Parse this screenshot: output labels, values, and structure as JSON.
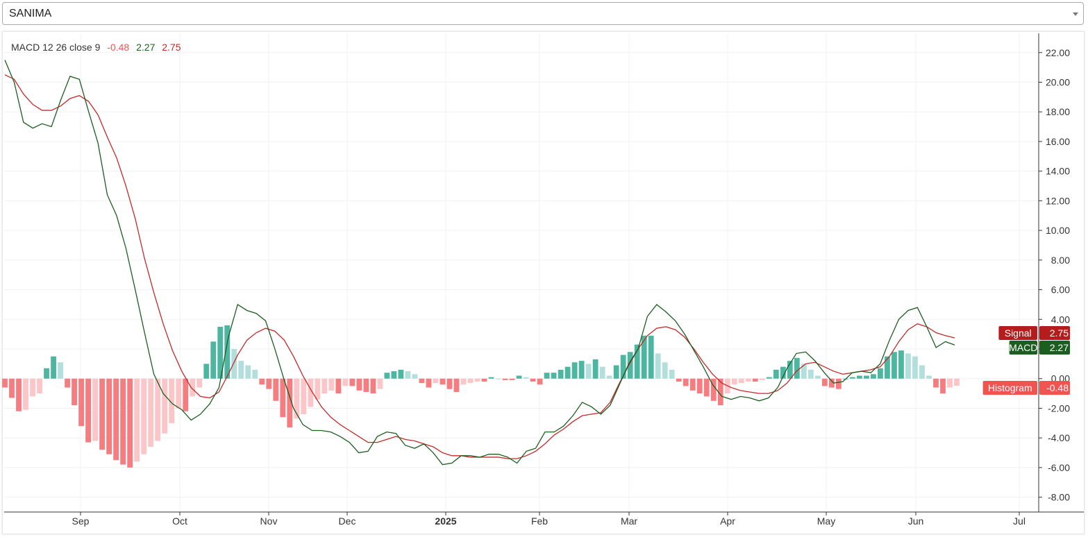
{
  "symbol_select": {
    "value": "SANIMA"
  },
  "legend": {
    "label": "MACD 12 26 close 9",
    "histogram": "-0.48",
    "macd": "2.27",
    "signal": "2.75"
  },
  "colors": {
    "macd_line": "#1b5e20",
    "signal_line": "#c62828",
    "hist_pos_strong": "#4db6a0",
    "hist_pos_weak": "#b2dfdb",
    "hist_neg_strong": "#f77c80",
    "hist_neg_weak": "#fcc5c8",
    "signal_badge": "#b71c1c",
    "macd_badge": "#1b5e20",
    "histogram_badge": "#f05350"
  },
  "chart_data": {
    "type": "line",
    "x_labels": [
      "Sep",
      "Oct",
      "Nov",
      "Dec",
      "2025",
      "Feb",
      "Mar",
      "Apr",
      "May",
      "Jun",
      "Jul"
    ],
    "y_ticks": [
      "22.00",
      "20.00",
      "18.00",
      "16.00",
      "14.00",
      "12.00",
      "10.00",
      "8.00",
      "6.00",
      "4.00",
      "2.00",
      "0.00",
      "-2.00",
      "-4.00",
      "-6.00",
      "-8.00"
    ],
    "ylim": [
      -9,
      23.3
    ],
    "grid": true,
    "series": [
      {
        "name": "MACD",
        "type": "line",
        "points": [
          [
            0,
            21.5
          ],
          [
            1,
            20.0
          ],
          [
            2,
            17.3
          ],
          [
            3,
            16.9
          ],
          [
            4,
            17.2
          ],
          [
            5,
            17.0
          ],
          [
            6,
            18.8
          ],
          [
            7,
            20.4
          ],
          [
            8,
            20.2
          ],
          [
            9,
            18.0
          ],
          [
            10,
            15.9
          ],
          [
            11,
            12.4
          ],
          [
            12,
            11.0
          ],
          [
            13,
            8.8
          ],
          [
            14,
            6.0
          ],
          [
            15,
            3.1
          ],
          [
            16,
            0.3
          ],
          [
            17,
            -1.0
          ],
          [
            18,
            -1.7
          ],
          [
            19,
            -2.1
          ],
          [
            20,
            -2.8
          ],
          [
            21,
            -2.4
          ],
          [
            22,
            -1.7
          ],
          [
            23,
            -0.6
          ],
          [
            24,
            2.8
          ],
          [
            25,
            5.0
          ],
          [
            26,
            4.6
          ],
          [
            27,
            4.4
          ],
          [
            28,
            3.9
          ],
          [
            29,
            2.0
          ],
          [
            30,
            -0.1
          ],
          [
            31,
            -2.0
          ],
          [
            32,
            -3.1
          ],
          [
            33,
            -3.5
          ],
          [
            34,
            -3.5
          ],
          [
            35,
            -3.6
          ],
          [
            36,
            -3.9
          ],
          [
            37,
            -4.3
          ],
          [
            38,
            -5.0
          ],
          [
            39,
            -4.9
          ],
          [
            40,
            -3.9
          ],
          [
            41,
            -3.6
          ],
          [
            42,
            -3.7
          ],
          [
            43,
            -4.5
          ],
          [
            44,
            -4.7
          ],
          [
            45,
            -4.4
          ],
          [
            46,
            -5.0
          ],
          [
            47,
            -5.8
          ],
          [
            48,
            -5.7
          ],
          [
            49,
            -5.2
          ],
          [
            50,
            -5.2
          ],
          [
            51,
            -5.3
          ],
          [
            52,
            -5.1
          ],
          [
            53,
            -5.1
          ],
          [
            54,
            -5.3
          ],
          [
            55,
            -5.7
          ],
          [
            56,
            -4.9
          ],
          [
            57,
            -4.7
          ],
          [
            58,
            -3.6
          ],
          [
            59,
            -3.6
          ],
          [
            60,
            -3.2
          ],
          [
            61,
            -2.5
          ],
          [
            62,
            -1.6
          ],
          [
            63,
            -1.9
          ],
          [
            64,
            -2.4
          ],
          [
            65,
            -1.8
          ],
          [
            66,
            -0.4
          ],
          [
            67,
            1.0
          ],
          [
            68,
            2.0
          ],
          [
            69,
            4.2
          ],
          [
            70,
            5.0
          ],
          [
            71,
            4.5
          ],
          [
            72,
            3.9
          ],
          [
            73,
            3.0
          ],
          [
            74,
            1.9
          ],
          [
            75,
            0.8
          ],
          [
            76,
            -0.4
          ],
          [
            77,
            -1.2
          ],
          [
            78,
            -1.4
          ],
          [
            79,
            -1.2
          ],
          [
            80,
            -1.3
          ],
          [
            81,
            -1.5
          ],
          [
            82,
            -1.3
          ],
          [
            83,
            -0.6
          ],
          [
            84,
            0.7
          ],
          [
            85,
            1.7
          ],
          [
            86,
            1.8
          ],
          [
            87,
            1.2
          ],
          [
            88,
            0.4
          ],
          [
            89,
            -0.3
          ],
          [
            90,
            -0.2
          ],
          [
            91,
            0.4
          ],
          [
            92,
            0.5
          ],
          [
            93,
            0.4
          ],
          [
            94,
            1.0
          ],
          [
            95,
            2.6
          ],
          [
            96,
            4.0
          ],
          [
            97,
            4.6
          ],
          [
            98,
            4.8
          ],
          [
            99,
            3.5
          ],
          [
            100,
            2.1
          ],
          [
            101,
            2.5
          ],
          [
            102,
            2.27
          ]
        ]
      },
      {
        "name": "Signal",
        "type": "line",
        "points": [
          [
            0,
            20.5
          ],
          [
            1,
            20.2
          ],
          [
            2,
            19.2
          ],
          [
            3,
            18.5
          ],
          [
            4,
            18.1
          ],
          [
            5,
            18.1
          ],
          [
            6,
            18.4
          ],
          [
            7,
            18.9
          ],
          [
            8,
            19.1
          ],
          [
            9,
            18.7
          ],
          [
            10,
            17.8
          ],
          [
            11,
            16.3
          ],
          [
            12,
            14.9
          ],
          [
            13,
            13.0
          ],
          [
            14,
            10.8
          ],
          [
            15,
            8.1
          ],
          [
            16,
            5.8
          ],
          [
            17,
            3.7
          ],
          [
            18,
            1.9
          ],
          [
            19,
            0.5
          ],
          [
            20,
            -0.6
          ],
          [
            21,
            -1.2
          ],
          [
            22,
            -1.3
          ],
          [
            23,
            -0.9
          ],
          [
            24,
            0.3
          ],
          [
            25,
            1.6
          ],
          [
            26,
            2.6
          ],
          [
            27,
            3.1
          ],
          [
            28,
            3.4
          ],
          [
            29,
            3.2
          ],
          [
            30,
            2.6
          ],
          [
            31,
            1.5
          ],
          [
            32,
            0.2
          ],
          [
            33,
            -0.9
          ],
          [
            34,
            -1.9
          ],
          [
            35,
            -2.6
          ],
          [
            36,
            -3.1
          ],
          [
            37,
            -3.5
          ],
          [
            38,
            -3.9
          ],
          [
            39,
            -4.3
          ],
          [
            40,
            -4.3
          ],
          [
            41,
            -4.1
          ],
          [
            42,
            -3.9
          ],
          [
            43,
            -4.1
          ],
          [
            44,
            -4.2
          ],
          [
            45,
            -4.4
          ],
          [
            46,
            -4.6
          ],
          [
            47,
            -5.0
          ],
          [
            48,
            -5.2
          ],
          [
            49,
            -5.2
          ],
          [
            50,
            -5.3
          ],
          [
            51,
            -5.3
          ],
          [
            52,
            -5.3
          ],
          [
            53,
            -5.3
          ],
          [
            54,
            -5.4
          ],
          [
            55,
            -5.4
          ],
          [
            56,
            -5.2
          ],
          [
            57,
            -4.9
          ],
          [
            58,
            -4.4
          ],
          [
            59,
            -3.8
          ],
          [
            60,
            -3.4
          ],
          [
            61,
            -2.9
          ],
          [
            62,
            -2.5
          ],
          [
            63,
            -2.4
          ],
          [
            64,
            -2.3
          ],
          [
            65,
            -1.6
          ],
          [
            66,
            -0.3
          ],
          [
            67,
            0.9
          ],
          [
            68,
            2.0
          ],
          [
            69,
            2.9
          ],
          [
            70,
            3.4
          ],
          [
            71,
            3.5
          ],
          [
            72,
            3.3
          ],
          [
            73,
            2.8
          ],
          [
            74,
            2.0
          ],
          [
            75,
            1.1
          ],
          [
            76,
            0.3
          ],
          [
            77,
            -0.3
          ],
          [
            78,
            -0.6
          ],
          [
            79,
            -0.8
          ],
          [
            80,
            -0.9
          ],
          [
            81,
            -1.0
          ],
          [
            82,
            -1.0
          ],
          [
            83,
            -0.8
          ],
          [
            84,
            -0.3
          ],
          [
            85,
            0.5
          ],
          [
            86,
            1.0
          ],
          [
            87,
            1.1
          ],
          [
            88,
            0.8
          ],
          [
            89,
            0.5
          ],
          [
            90,
            0.3
          ],
          [
            91,
            0.4
          ],
          [
            92,
            0.5
          ],
          [
            93,
            0.6
          ],
          [
            94,
            0.8
          ],
          [
            95,
            1.5
          ],
          [
            96,
            2.5
          ],
          [
            97,
            3.3
          ],
          [
            98,
            3.7
          ],
          [
            99,
            3.5
          ],
          [
            100,
            3.1
          ],
          [
            101,
            2.9
          ],
          [
            102,
            2.75
          ]
        ]
      },
      {
        "name": "Histogram",
        "type": "bar",
        "values": [
          -0.6,
          -1.3,
          -2.2,
          -2.1,
          -1.2,
          -1.0,
          0.7,
          1.5,
          1.1,
          -0.6,
          -1.8,
          -3.2,
          -4.3,
          -4.2,
          -4.8,
          -5.1,
          -5.5,
          -5.8,
          -6.0,
          -5.6,
          -5.1,
          -4.6,
          -4.2,
          -3.7,
          -3.0,
          -2.0,
          -2.2,
          -1.2,
          -0.6,
          1.0,
          2.5,
          3.5,
          3.6,
          2.0,
          1.2,
          0.9,
          0.6,
          -0.4,
          -0.7,
          -1.5,
          -2.6,
          -3.3,
          -2.7,
          -2.4,
          -1.9,
          -1.4,
          -1.0,
          -0.8,
          -1.0,
          -0.5,
          -0.5,
          -0.8,
          -0.9,
          -1.0,
          -0.7,
          0.4,
          0.5,
          0.6,
          0.5,
          0.3,
          -0.3,
          -0.6,
          -0.3,
          -0.4,
          -0.7,
          -0.9,
          -0.4,
          -0.3,
          -0.2,
          -0.2,
          0.1,
          0.0,
          -0.1,
          -0.1,
          0.2,
          0.1,
          -0.2,
          -0.4,
          0.4,
          0.4,
          0.6,
          0.8,
          1.1,
          1.2,
          1.0,
          1.3,
          0.8,
          0.2,
          0.9,
          1.6,
          1.8,
          2.3,
          2.9,
          2.9,
          1.7,
          1.1,
          0.6,
          -0.2,
          -0.5,
          -0.8,
          -1.0,
          -1.2,
          -1.5,
          -1.8,
          -1.0,
          -0.4,
          -0.3,
          -0.2,
          -0.2,
          -0.1,
          0.1,
          0.6,
          0.8,
          1.2,
          1.4,
          1.0,
          0.6,
          0.2,
          -0.5,
          -0.6,
          -0.7,
          0.0,
          0.1,
          0.2,
          0.2,
          0.3,
          0.7,
          1.5,
          1.8,
          1.9,
          1.7,
          1.5,
          0.9,
          0.2,
          -0.6,
          -1.0,
          -0.6,
          -0.48
        ]
      }
    ]
  }
}
